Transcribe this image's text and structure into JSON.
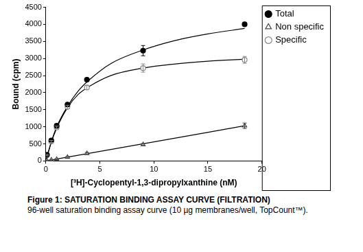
{
  "chart_data": {
    "type": "scatter",
    "x_label": "[³H]-Cyclopentyl-1,3-dipropylxanthine (nM)",
    "y_label": "Bound (cpm)",
    "xlim": [
      0,
      20
    ],
    "xticks": [
      0,
      5,
      10,
      15,
      20
    ],
    "ylim": [
      0,
      4500
    ],
    "yticks": [
      0,
      500,
      1000,
      1500,
      2000,
      2500,
      3000,
      3500,
      4000,
      4500
    ],
    "grid": false,
    "legend": "right",
    "series": [
      {
        "name": "Total",
        "color": "#000000",
        "marker": "dot",
        "x": [
          0.1,
          0.5,
          1.0,
          2.0,
          3.8,
          9.0,
          18.4
        ],
        "values": [
          180,
          600,
          1030,
          1650,
          2380,
          3230,
          4000
        ],
        "errors": [
          20,
          30,
          40,
          50,
          50,
          150,
          40
        ],
        "fit": {
          "x": [
            0,
            0.5,
            1,
            2,
            3,
            4,
            6,
            9,
            12,
            15,
            18.4
          ],
          "values": [
            0,
            560,
            1000,
            1600,
            2050,
            2370,
            2850,
            3250,
            3530,
            3720,
            3880
          ]
        }
      },
      {
        "name": "Non specific",
        "color": "#444444",
        "marker": "triangle",
        "x": [
          0.1,
          0.5,
          1.0,
          2.0,
          3.8,
          9.0,
          18.4
        ],
        "values": [
          10,
          30,
          50,
          110,
          220,
          480,
          1030
        ],
        "errors": [
          10,
          10,
          10,
          20,
          30,
          30,
          80
        ],
        "fit": {
          "x": [
            0,
            18.4
          ],
          "values": [
            0,
            1030
          ]
        }
      },
      {
        "name": "Specific",
        "color": "#888888",
        "marker": "circle",
        "x": [
          0.1,
          0.5,
          1.0,
          2.0,
          3.8,
          9.0,
          18.4
        ],
        "values": [
          170,
          570,
          980,
          1580,
          2150,
          2720,
          2960
        ],
        "errors": [
          20,
          30,
          40,
          50,
          60,
          120,
          100
        ],
        "fit": {
          "x": [
            0,
            0.5,
            1,
            2,
            3,
            4,
            6,
            9,
            12,
            15,
            18.4
          ],
          "values": [
            0,
            540,
            960,
            1560,
            1950,
            2180,
            2500,
            2720,
            2840,
            2920,
            2980
          ]
        }
      }
    ]
  },
  "caption": {
    "title": "Figure 1: SATURATION BINDING ASSAY CURVE (FILTRATION)",
    "text": "96-well saturation binding assay curve (10 µg membranes/well, TopCount™)."
  }
}
